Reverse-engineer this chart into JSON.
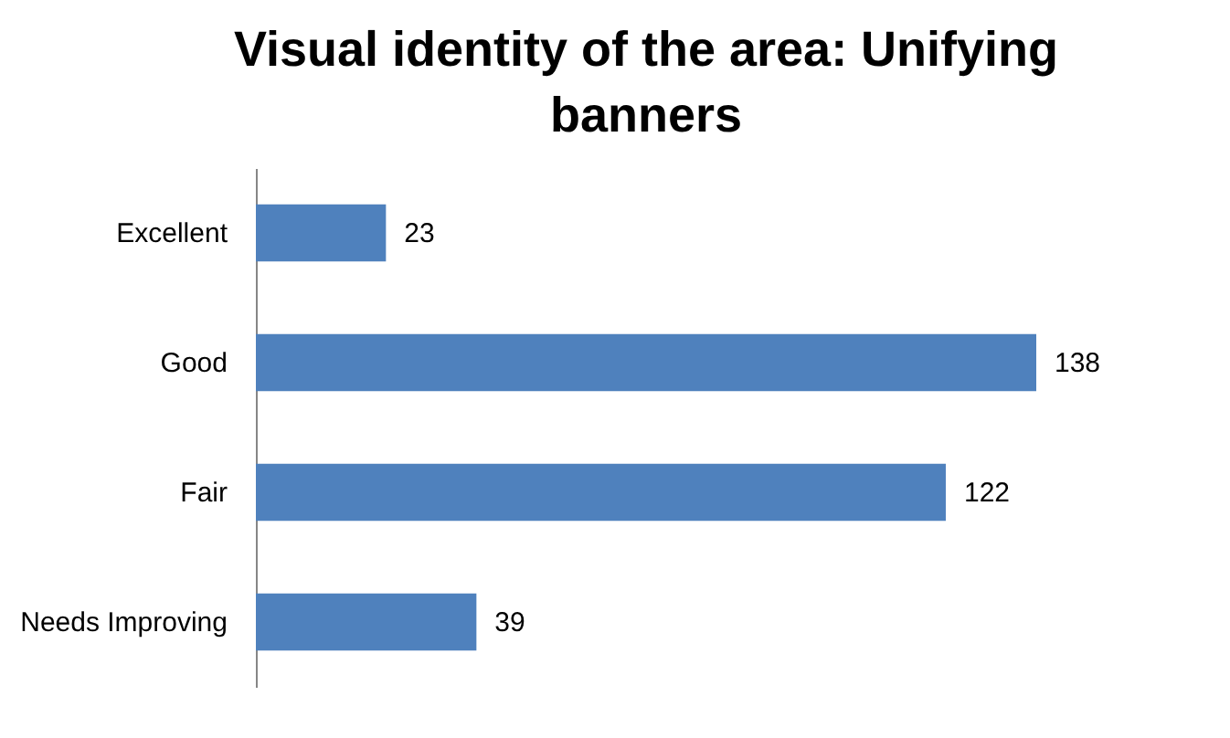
{
  "chart_data": {
    "type": "bar",
    "orientation": "horizontal",
    "title": "Visual identity of the area: Unifying banners",
    "categories": [
      "Excellent",
      "Good",
      "Fair",
      "Needs Improving"
    ],
    "values": [
      23,
      138,
      122,
      39
    ],
    "color": "#4f81bd",
    "data_labels": true
  }
}
